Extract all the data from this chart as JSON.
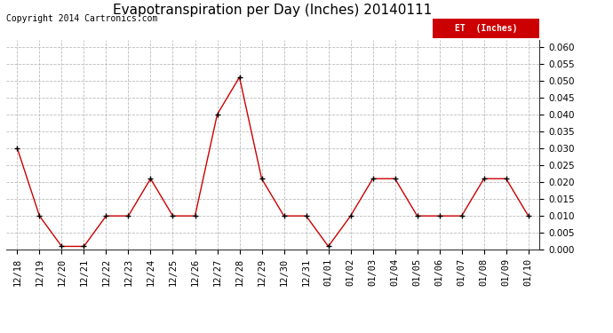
{
  "title": "Evapotranspiration per Day (Inches) 20140111",
  "copyright_text": "Copyright 2014 Cartronics.com",
  "legend_label": "ET  (Inches)",
  "legend_bg": "#cc0000",
  "legend_text_color": "#ffffff",
  "x_labels": [
    "12/18",
    "12/19",
    "12/20",
    "12/21",
    "12/22",
    "12/23",
    "12/24",
    "12/25",
    "12/26",
    "12/27",
    "12/28",
    "12/29",
    "12/30",
    "12/31",
    "01/01",
    "01/02",
    "01/03",
    "01/04",
    "01/05",
    "01/06",
    "01/07",
    "01/08",
    "01/09",
    "01/10"
  ],
  "y_values": [
    0.03,
    0.01,
    0.001,
    0.001,
    0.01,
    0.01,
    0.021,
    0.01,
    0.01,
    0.04,
    0.051,
    0.021,
    0.01,
    0.01,
    0.001,
    0.01,
    0.021,
    0.021,
    0.01,
    0.01,
    0.01,
    0.021,
    0.021,
    0.01
  ],
  "line_color": "#cc0000",
  "marker_color": "#000000",
  "grid_color": "#bbbbbb",
  "bg_color": "#ffffff",
  "ylim": [
    0.0,
    0.062
  ],
  "yticks": [
    0.0,
    0.005,
    0.01,
    0.015,
    0.02,
    0.025,
    0.03,
    0.035,
    0.04,
    0.045,
    0.05,
    0.055,
    0.06
  ],
  "title_fontsize": 11,
  "copyright_fontsize": 7,
  "tick_fontsize": 7.5
}
